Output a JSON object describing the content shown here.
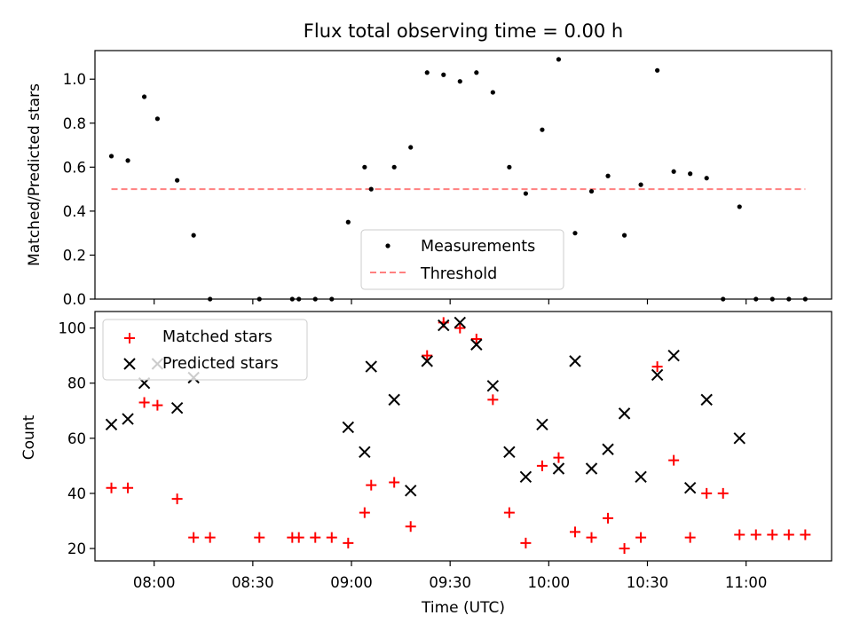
{
  "chart_data": [
    {
      "type": "scatter",
      "title": "Flux total observing time = 0.00 h",
      "ylabel": "Matched/Predicted stars",
      "xlim": [
        "07:42",
        "11:26"
      ],
      "ylim": [
        0,
        1.13
      ],
      "yticks": [
        "0.0",
        "0.2",
        "0.4",
        "0.6",
        "0.8",
        "1.0"
      ],
      "grid": false,
      "legend_position": "lower center",
      "series": [
        {
          "name": "Measurements",
          "color": "#000000",
          "marker": "dot",
          "points": [
            [
              "07:47",
              0.65
            ],
            [
              "07:52",
              0.63
            ],
            [
              "07:57",
              0.92
            ],
            [
              "08:01",
              0.82
            ],
            [
              "08:07",
              0.54
            ],
            [
              "08:12",
              0.29
            ],
            [
              "08:17",
              0.0
            ],
            [
              "08:32",
              0.0
            ],
            [
              "08:42",
              0.0
            ],
            [
              "08:44",
              0.0
            ],
            [
              "08:49",
              0.0
            ],
            [
              "08:54",
              0.0
            ],
            [
              "08:59",
              0.35
            ],
            [
              "09:04",
              0.6
            ],
            [
              "09:06",
              0.5
            ],
            [
              "09:13",
              0.6
            ],
            [
              "09:18",
              0.69
            ],
            [
              "09:23",
              1.03
            ],
            [
              "09:28",
              1.02
            ],
            [
              "09:33",
              0.99
            ],
            [
              "09:38",
              1.03
            ],
            [
              "09:43",
              0.94
            ],
            [
              "09:48",
              0.6
            ],
            [
              "09:53",
              0.48
            ],
            [
              "09:58",
              0.77
            ],
            [
              "10:03",
              1.09
            ],
            [
              "10:08",
              0.3
            ],
            [
              "10:13",
              0.49
            ],
            [
              "10:18",
              0.56
            ],
            [
              "10:23",
              0.29
            ],
            [
              "10:28",
              0.52
            ],
            [
              "10:33",
              1.04
            ],
            [
              "10:38",
              0.58
            ],
            [
              "10:43",
              0.57
            ],
            [
              "10:48",
              0.55
            ],
            [
              "10:53",
              0.0
            ],
            [
              "10:58",
              0.42
            ],
            [
              "11:03",
              0.0
            ],
            [
              "11:08",
              0.0
            ],
            [
              "11:13",
              0.0
            ],
            [
              "11:18",
              0.0
            ]
          ]
        },
        {
          "name": "Threshold",
          "color": "#ff8080",
          "style": "dashed",
          "points": [
            [
              "07:47",
              0.5
            ],
            [
              "11:18",
              0.5
            ]
          ]
        }
      ]
    },
    {
      "type": "scatter",
      "xlabel": "Time (UTC)",
      "ylabel": "Count",
      "xlim": [
        "07:42",
        "11:26"
      ],
      "ylim": [
        15.5,
        106
      ],
      "xticks": [
        "08:00",
        "08:30",
        "09:00",
        "09:30",
        "10:00",
        "10:30",
        "11:00"
      ],
      "yticks": [
        "20",
        "40",
        "60",
        "80",
        "100"
      ],
      "grid": false,
      "legend_position": "upper left",
      "series": [
        {
          "name": "Matched stars",
          "color": "#ff0000",
          "marker": "plus",
          "points": [
            [
              "07:47",
              42
            ],
            [
              "07:52",
              42
            ],
            [
              "07:57",
              73
            ],
            [
              "08:01",
              72
            ],
            [
              "08:07",
              38
            ],
            [
              "08:12",
              24
            ],
            [
              "08:17",
              24
            ],
            [
              "08:32",
              24
            ],
            [
              "08:42",
              24
            ],
            [
              "08:44",
              24
            ],
            [
              "08:49",
              24
            ],
            [
              "08:54",
              24
            ],
            [
              "08:59",
              22
            ],
            [
              "09:04",
              33
            ],
            [
              "09:06",
              43
            ],
            [
              "09:13",
              44
            ],
            [
              "09:18",
              28
            ],
            [
              "09:23",
              90
            ],
            [
              "09:28",
              102
            ],
            [
              "09:33",
              100
            ],
            [
              "09:38",
              96
            ],
            [
              "09:43",
              74
            ],
            [
              "09:48",
              33
            ],
            [
              "09:53",
              22
            ],
            [
              "09:58",
              50
            ],
            [
              "10:03",
              53
            ],
            [
              "10:08",
              26
            ],
            [
              "10:13",
              24
            ],
            [
              "10:18",
              31
            ],
            [
              "10:23",
              20
            ],
            [
              "10:28",
              24
            ],
            [
              "10:33",
              86
            ],
            [
              "10:38",
              52
            ],
            [
              "10:43",
              24
            ],
            [
              "10:48",
              40
            ],
            [
              "10:53",
              40
            ],
            [
              "10:58",
              25
            ],
            [
              "11:03",
              25
            ],
            [
              "11:08",
              25
            ],
            [
              "11:13",
              25
            ],
            [
              "11:18",
              25
            ]
          ]
        },
        {
          "name": "Predicted stars",
          "color": "#000000",
          "marker": "x",
          "points": [
            [
              "07:47",
              65
            ],
            [
              "07:52",
              67
            ],
            [
              "07:57",
              80
            ],
            [
              "08:01",
              87
            ],
            [
              "08:07",
              71
            ],
            [
              "08:12",
              82
            ],
            [
              "08:59",
              64
            ],
            [
              "09:04",
              55
            ],
            [
              "09:06",
              86
            ],
            [
              "09:13",
              74
            ],
            [
              "09:18",
              41
            ],
            [
              "09:23",
              88
            ],
            [
              "09:28",
              101
            ],
            [
              "09:33",
              102
            ],
            [
              "09:38",
              94
            ],
            [
              "09:43",
              79
            ],
            [
              "09:48",
              55
            ],
            [
              "09:53",
              46
            ],
            [
              "09:58",
              65
            ],
            [
              "10:03",
              49
            ],
            [
              "10:08",
              88
            ],
            [
              "10:13",
              49
            ],
            [
              "10:18",
              56
            ],
            [
              "10:23",
              69
            ],
            [
              "10:28",
              46
            ],
            [
              "10:33",
              83
            ],
            [
              "10:38",
              90
            ],
            [
              "10:43",
              42
            ],
            [
              "10:48",
              74
            ],
            [
              "10:58",
              60
            ]
          ]
        }
      ]
    }
  ]
}
